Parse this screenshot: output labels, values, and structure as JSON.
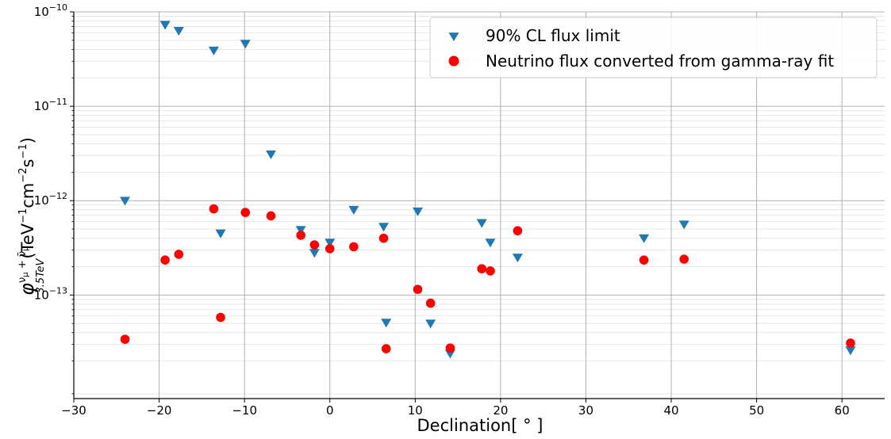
{
  "chart_data": {
    "type": "scatter",
    "xlabel": "Declination[ ° ]",
    "ylabel": "φ^{ν_μ+ν̄_μ}_{3.5TeV}(TeV^{-1}cm^{-2}s^{-1})",
    "xlim": [
      -30,
      65
    ],
    "ylim": [
      8e-15,
      1e-10
    ],
    "yscale": "log",
    "grid": true,
    "legend_position": "top-right",
    "x_ticks": [
      -30,
      -20,
      -10,
      0,
      10,
      20,
      30,
      40,
      50,
      60
    ],
    "y_ticks": [
      {
        "value": 1e-13,
        "mant": "10",
        "exp": "−13"
      },
      {
        "value": 1e-12,
        "mant": "10",
        "exp": "−12"
      },
      {
        "value": 1e-11,
        "mant": "10",
        "exp": "−11"
      },
      {
        "value": 1e-10,
        "mant": "10",
        "exp": "−10"
      }
    ],
    "series": [
      {
        "name": "90% CL flux limit",
        "marker": "triangle-down",
        "color": "#1f77b4",
        "points": [
          [
            -24.0,
            1e-12
          ],
          [
            -19.3,
            7.3e-11
          ],
          [
            -17.7,
            6.3e-11
          ],
          [
            -13.6,
            3.9e-11
          ],
          [
            -9.9,
            4.6e-11
          ],
          [
            -6.9,
            3.1e-12
          ],
          [
            -12.8,
            4.5e-13
          ],
          [
            -3.4,
            4.9e-13
          ],
          [
            -1.8,
            2.8e-13
          ],
          [
            0.0,
            3.6e-13
          ],
          [
            2.8,
            8e-13
          ],
          [
            6.3,
            5.3e-13
          ],
          [
            6.6,
            5.1e-14
          ],
          [
            10.3,
            7.7e-13
          ],
          [
            11.8,
            5e-14
          ],
          [
            14.1,
            2.4e-14
          ],
          [
            17.8,
            5.8e-13
          ],
          [
            18.8,
            3.6e-13
          ],
          [
            22.0,
            2.5e-13
          ],
          [
            36.8,
            4e-13
          ],
          [
            41.5,
            5.6e-13
          ],
          [
            61.0,
            2.6e-14
          ]
        ]
      },
      {
        "name": "Neutrino flux converted from gamma-ray fit",
        "marker": "circle",
        "color": "#ff0000",
        "points": [
          [
            -24.0,
            3.4e-14
          ],
          [
            -19.3,
            2.35e-13
          ],
          [
            -17.7,
            2.7e-13
          ],
          [
            -13.6,
            8.2e-13
          ],
          [
            -12.8,
            5.8e-14
          ],
          [
            -9.9,
            7.5e-13
          ],
          [
            -6.9,
            6.9e-13
          ],
          [
            -3.4,
            4.3e-13
          ],
          [
            -1.8,
            3.4e-13
          ],
          [
            0.0,
            3.1e-13
          ],
          [
            2.8,
            3.25e-13
          ],
          [
            6.3,
            4e-13
          ],
          [
            6.6,
            2.7e-14
          ],
          [
            10.3,
            1.15e-13
          ],
          [
            11.8,
            8.2e-14
          ],
          [
            14.1,
            2.75e-14
          ],
          [
            17.8,
            1.9e-13
          ],
          [
            18.8,
            1.8e-13
          ],
          [
            22.0,
            4.8e-13
          ],
          [
            36.8,
            2.35e-13
          ],
          [
            41.5,
            2.4e-13
          ],
          [
            61.0,
            3.1e-14
          ]
        ]
      }
    ]
  }
}
